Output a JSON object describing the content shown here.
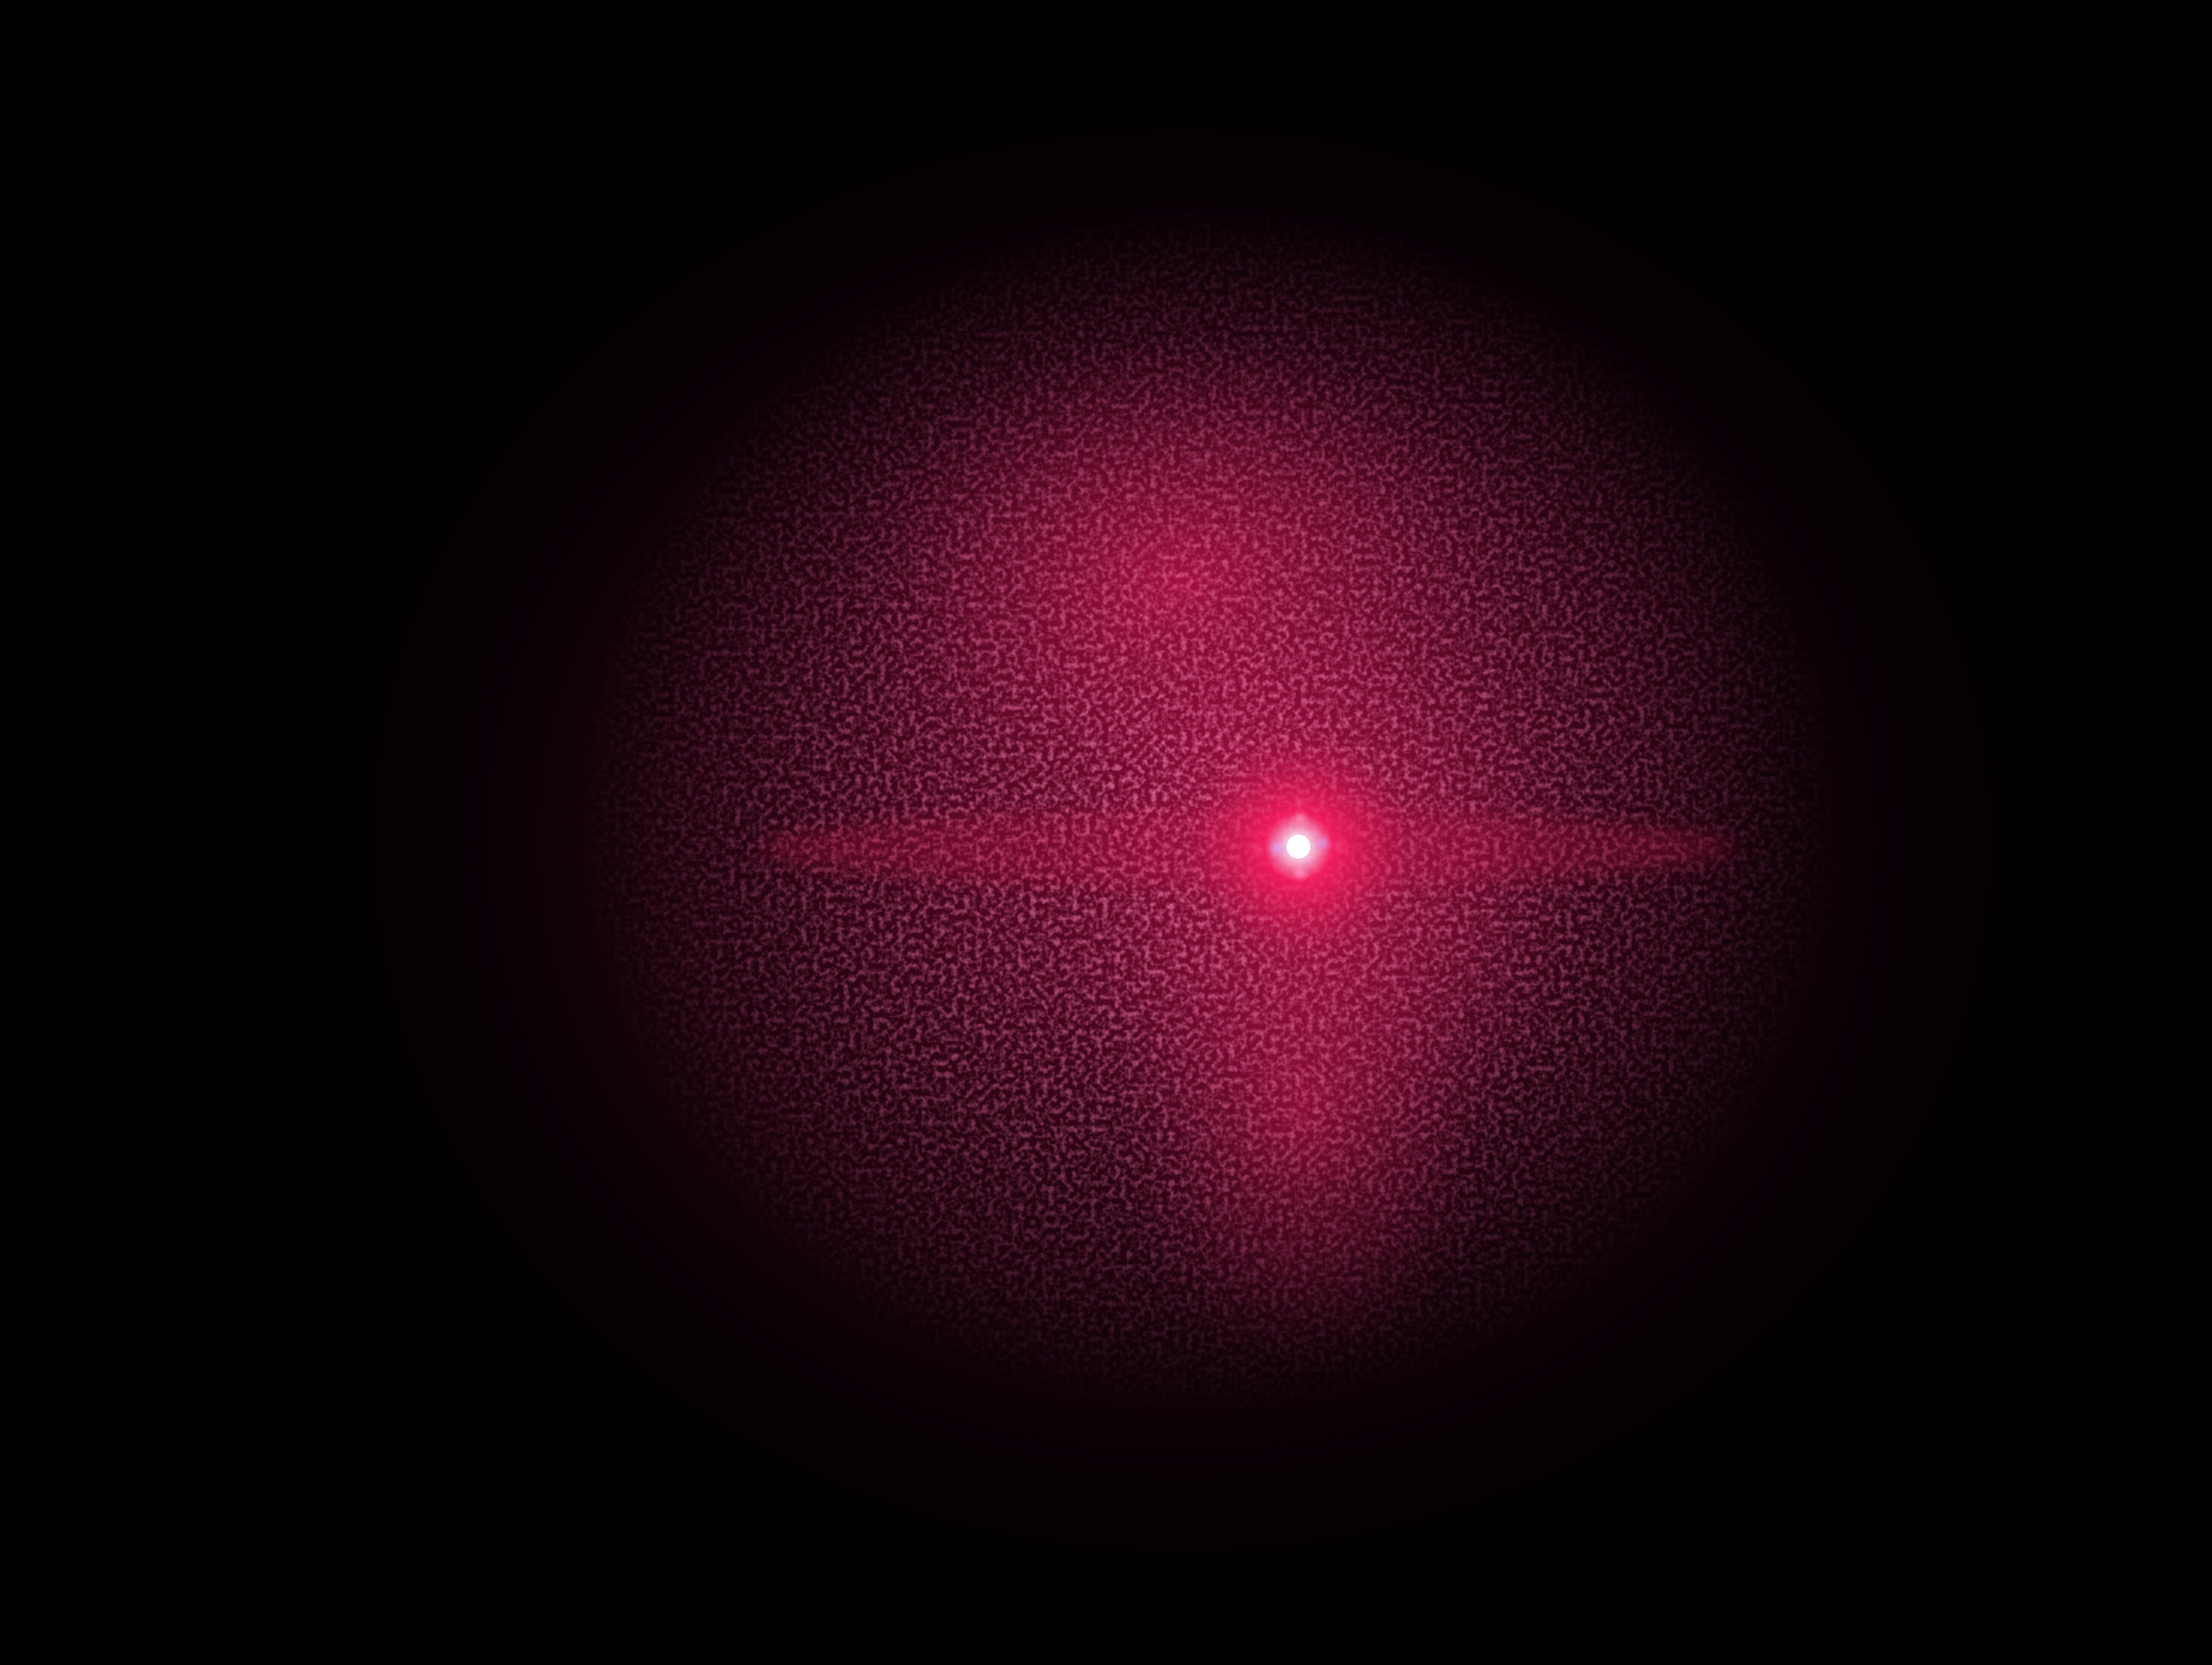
{
  "scene": {
    "subject": "laser-speckle-diffraction-spot",
    "colors": {
      "background": "#020003",
      "vignette": "#000000",
      "glow_outer": "#3a0416",
      "glow_mid": "#8a0c37",
      "glow_inner": "#c8154c",
      "speckle": "#e2336a",
      "core": "#ff1f63",
      "core_highlight": "#ffffff",
      "core_fringe": "#d7a8ff"
    }
  }
}
